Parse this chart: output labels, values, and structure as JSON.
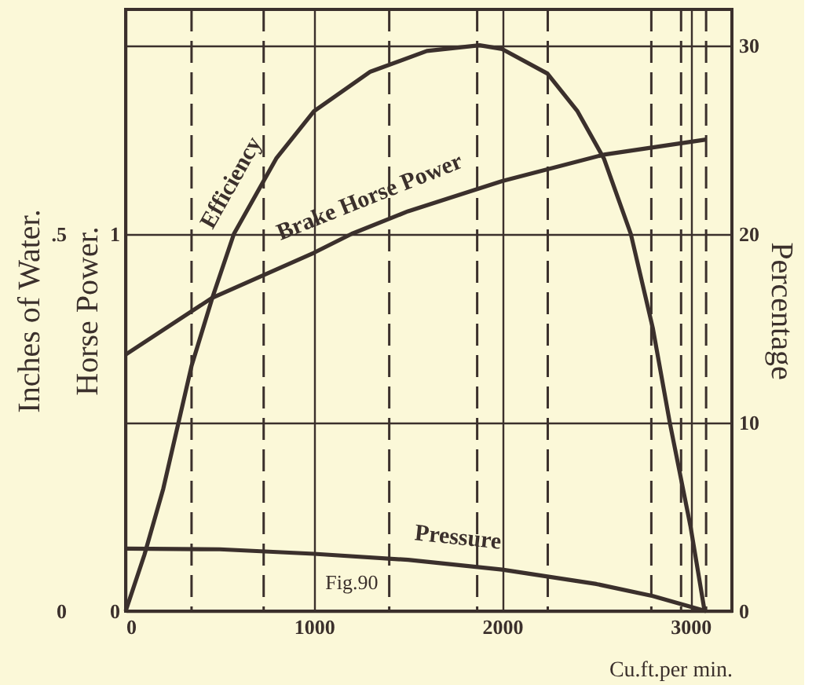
{
  "chart_data": {
    "type": "line",
    "xlabel": "Cu.ft.per min.",
    "ylabel": "Horse Power.",
    "y2label": "Percentage",
    "y3label": "Inches of Water.",
    "xlim": [
      0,
      3220
    ],
    "xticks": [
      0,
      1000,
      2000,
      3000
    ],
    "ylim": [
      0,
      1.595
    ],
    "yticks": [
      0,
      1
    ],
    "y2lim": [
      0,
      31.9
    ],
    "y2ticks": [
      0,
      10,
      20,
      30
    ],
    "y3lim": [
      0,
      0.7975
    ],
    "y3ticks": [
      0,
      {
        "value": 0.5,
        "label": ".5"
      }
    ],
    "grid": true,
    "marker": "none",
    "line_style": "solid",
    "annotations": [
      "Fig.90"
    ],
    "ref_lines": [
      {
        "axis": "x",
        "value": 350,
        "line_style": "dashed"
      },
      {
        "axis": "x",
        "value": 733,
        "line_style": "dashed"
      },
      {
        "axis": "x",
        "value": 1400,
        "line_style": "dashed"
      },
      {
        "axis": "x",
        "value": 1867,
        "line_style": "dashed"
      },
      {
        "axis": "x",
        "value": 2242,
        "line_style": "dashed"
      },
      {
        "axis": "x",
        "value": 2792,
        "line_style": "dashed"
      },
      {
        "axis": "x",
        "value": 2950,
        "line_style": "dashed"
      },
      {
        "axis": "x",
        "value": 3083,
        "line_style": "dashed"
      }
    ],
    "series": [
      {
        "name": "Efficiency",
        "color": "#3b302c",
        "axis": "y2",
        "x": [
          0,
          100,
          200,
          350,
          460,
          575,
          800,
          1000,
          1300,
          1600,
          1880,
          2000,
          2240,
          2400,
          2540,
          2683,
          2800,
          2890,
          3000,
          3075
        ],
        "values": [
          0,
          3,
          6.5,
          13,
          16.6,
          20,
          24,
          26.5,
          28.6,
          29.7,
          30,
          29.8,
          28.5,
          26.5,
          24,
          20,
          15,
          10,
          4.5,
          0
        ]
      },
      {
        "name": "Brake Horse Power",
        "color": "#3b302c",
        "axis": "y",
        "x": [
          0,
          458,
          1000,
          1200,
          1500,
          2000,
          2540,
          3083
        ],
        "values": [
          0.68,
          0.83,
          0.95,
          1.0,
          1.06,
          1.14,
          1.21,
          1.25
        ]
      },
      {
        "name": "Pressure",
        "color": "#3b302c",
        "axis": "y3",
        "x": [
          0,
          500,
          1000,
          1500,
          2000,
          2500,
          2800,
          3083
        ],
        "values": [
          0.083,
          0.082,
          0.076,
          0.068,
          0.055,
          0.036,
          0.02,
          0
        ]
      }
    ]
  }
}
